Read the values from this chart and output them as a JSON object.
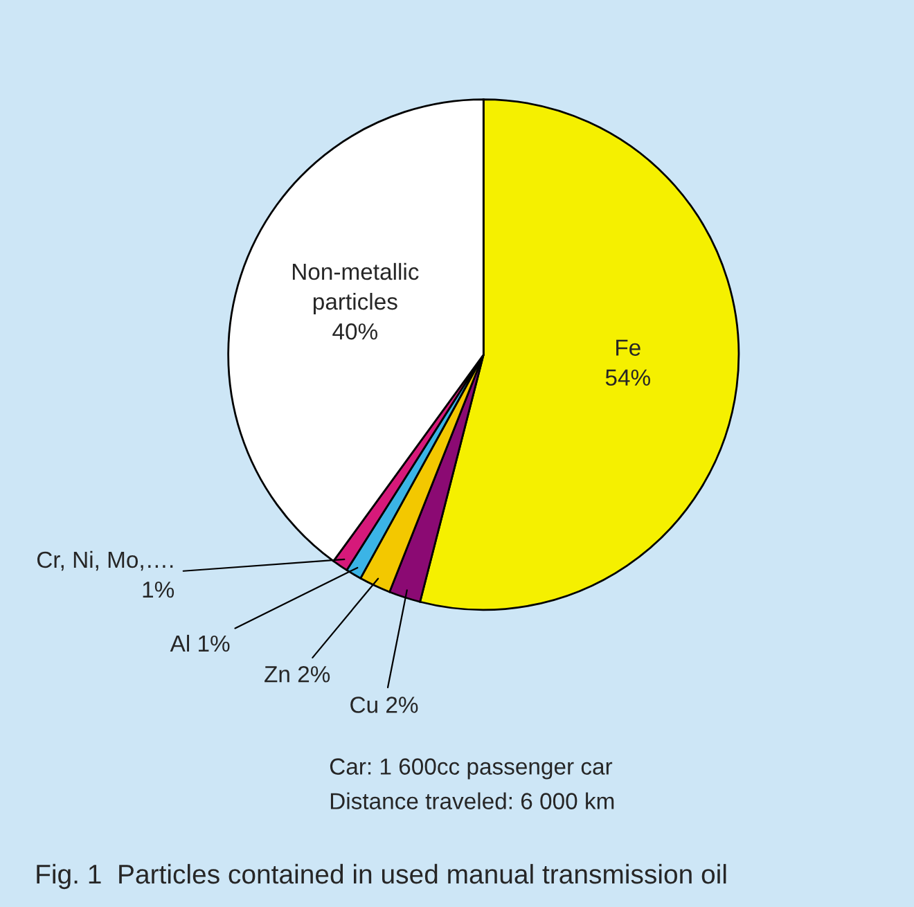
{
  "chart_data": {
    "type": "pie",
    "title": "Fig. 1  Particles contained in used manual transmission oil",
    "categories": [
      "Fe",
      "Cu",
      "Zn",
      "Al",
      "Cr, Ni, Mo,….",
      "Non-metallic\nparticles"
    ],
    "values": [
      54,
      2,
      2,
      1,
      1,
      40
    ],
    "value_labels": [
      "54%",
      "2%",
      "2%",
      "1%",
      "1%",
      "40%"
    ],
    "colors": [
      "#f5f000",
      "#8b0a73",
      "#f3c800",
      "#3bb4e6",
      "#d6197a",
      "#ffffff"
    ],
    "annotations": [
      "Car: 1 600cc passenger car",
      "Distance traveled: 6 000 km"
    ]
  }
}
